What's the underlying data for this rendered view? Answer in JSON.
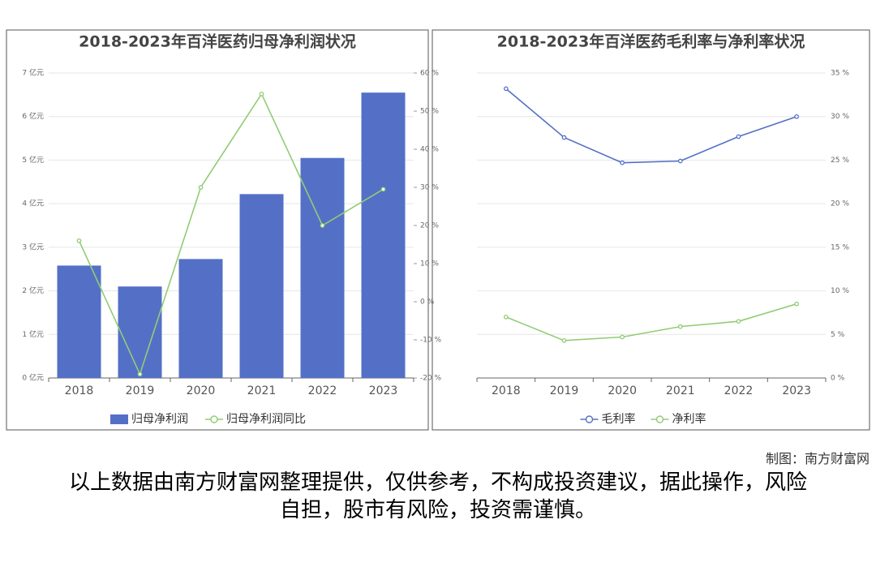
{
  "chart_data": [
    {
      "type": "bar",
      "title": "2018-2023年百洋医药归母净利润状况",
      "categories": [
        "2018",
        "2019",
        "2020",
        "2021",
        "2022",
        "2023"
      ],
      "series": [
        {
          "name": "归母净利润",
          "type": "bar",
          "color": "#5470c6",
          "values": [
            2.58,
            2.1,
            2.73,
            4.22,
            5.05,
            6.55
          ]
        },
        {
          "name": "归母净利润同比",
          "type": "line",
          "axis": "y2",
          "color": "#91cc75",
          "values": [
            16,
            -19,
            30,
            54.5,
            20,
            29.5
          ]
        }
      ],
      "ylim": [
        0,
        7
      ],
      "yticks": [
        {
          "value": 0,
          "label": "0 亿元"
        },
        {
          "value": 1,
          "label": "1 亿元"
        },
        {
          "value": 2,
          "label": "2 亿元"
        },
        {
          "value": 3,
          "label": "3 亿元"
        },
        {
          "value": 4,
          "label": "4 亿元"
        },
        {
          "value": 5,
          "label": "5 亿元"
        },
        {
          "value": 6,
          "label": "6 亿元"
        },
        {
          "value": 7,
          "label": "7 亿元"
        }
      ],
      "y2lim": [
        -20,
        60
      ],
      "y2ticks": [
        {
          "value": -20,
          "label": "-20 %"
        },
        {
          "value": -10,
          "label": "-10 %"
        },
        {
          "value": 0,
          "label": "0 %"
        },
        {
          "value": 10,
          "label": "10 %"
        },
        {
          "value": 20,
          "label": "20 %"
        },
        {
          "value": 30,
          "label": "30 %"
        },
        {
          "value": 40,
          "label": "40 %"
        },
        {
          "value": 50,
          "label": "50 %"
        },
        {
          "value": 60,
          "label": "60 %"
        }
      ],
      "grid": true
    },
    {
      "type": "line",
      "title": "2018-2023年百洋医药毛利率与净利率状况",
      "categories": [
        "2018",
        "2019",
        "2020",
        "2021",
        "2022",
        "2023"
      ],
      "series": [
        {
          "name": "毛利率",
          "color": "#5470c6",
          "values": [
            33.2,
            27.6,
            24.7,
            24.9,
            27.7,
            30.0
          ]
        },
        {
          "name": "净利率",
          "color": "#91cc75",
          "values": [
            7.0,
            4.3,
            4.7,
            5.9,
            6.5,
            8.5
          ]
        }
      ],
      "ylim": [
        0,
        35
      ],
      "yticks": [
        {
          "value": 0,
          "label": "0 %"
        },
        {
          "value": 5,
          "label": "5 %"
        },
        {
          "value": 10,
          "label": "10 %"
        },
        {
          "value": 15,
          "label": "15 %"
        },
        {
          "value": 20,
          "label": "20 %"
        },
        {
          "value": 25,
          "label": "25 %"
        },
        {
          "value": 30,
          "label": "30 %"
        },
        {
          "value": 35,
          "label": "35 %"
        }
      ],
      "y_axis_side": "right",
      "grid": true
    }
  ],
  "credit": "制图：南方财富网",
  "disclaimer": "以上数据由南方财富网整理提供，仅供参考，不构成投资建议，据此操作，风险自担，股市有风险，投资需谨慎。"
}
